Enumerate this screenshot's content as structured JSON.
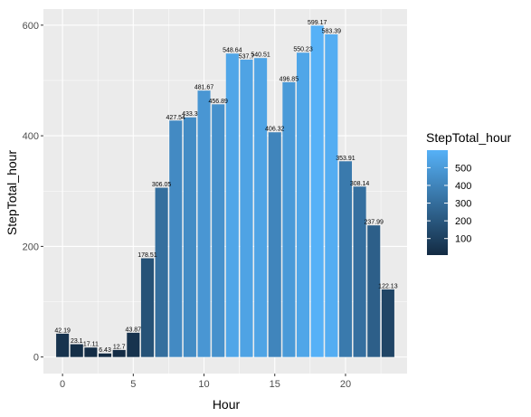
{
  "chart_data": {
    "type": "bar",
    "xlabel": "Hour",
    "ylabel": "StepTotal_hour",
    "x": [
      0,
      1,
      2,
      3,
      4,
      5,
      6,
      7,
      8,
      9,
      10,
      11,
      12,
      13,
      14,
      15,
      16,
      17,
      18,
      19,
      20,
      21,
      22,
      23
    ],
    "values": [
      42.19,
      23.1,
      17.11,
      6.43,
      12.7,
      43.87,
      178.51,
      306.05,
      427.54,
      433.3,
      481.67,
      456.89,
      548.64,
      537.7,
      540.51,
      406.32,
      496.85,
      550.23,
      599.17,
      583.39,
      353.91,
      308.14,
      237.99,
      122.13
    ],
    "data_labels": [
      "42.19",
      "23.1",
      "17.11",
      "6.43",
      "12.7",
      "43.87",
      "178.51",
      "306.05",
      "427.54",
      "433.3",
      "481.67",
      "456.89",
      "548.64",
      "537.7",
      "540.51",
      "406.32",
      "496.85",
      "550.23",
      "599.17",
      "583.39",
      "353.91",
      "308.14",
      "237.99",
      "122.13"
    ],
    "xlim": [
      -1.35,
      24.35
    ],
    "ylim": [
      -29.96,
      629.13
    ],
    "x_ticks": [
      0,
      5,
      10,
      15,
      20
    ],
    "x_tick_labels": [
      "0",
      "5",
      "10",
      "15",
      "20"
    ],
    "y_ticks": [
      0,
      200,
      400,
      600
    ],
    "y_tick_labels": [
      "0",
      "200",
      "400",
      "600"
    ],
    "grid": true,
    "legend": {
      "title": "StepTotal_hour",
      "position": "right",
      "breaks": [
        100,
        200,
        300,
        400,
        500
      ],
      "labels": [
        "100",
        "200",
        "300",
        "400",
        "500"
      ],
      "range": [
        6.43,
        599.17
      ]
    },
    "colors": {
      "low": "#132b43",
      "high": "#56b1f7",
      "panel_background": "#ebebeb",
      "grid": "#ffffff"
    }
  }
}
